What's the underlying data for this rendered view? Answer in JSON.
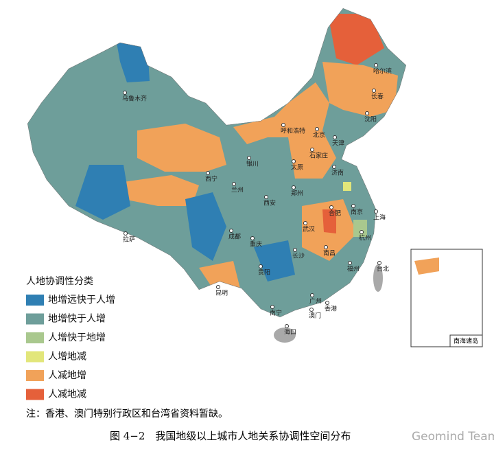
{
  "legend": {
    "title": "人地协调性分类",
    "items": [
      {
        "label": "地增远快于人增",
        "color": "#2f7fb3"
      },
      {
        "label": "地增快于人增",
        "color": "#6e9e9a"
      },
      {
        "label": "人增快于地增",
        "color": "#a9c88e"
      },
      {
        "label": "人增地减",
        "color": "#e2e67a"
      },
      {
        "label": "人减地增",
        "color": "#f1a259"
      },
      {
        "label": "人减地减",
        "color": "#e5603a"
      }
    ]
  },
  "cities": [
    "乌鲁木齐",
    "哈尔滨",
    "长春",
    "沈阳",
    "呼和浩特",
    "北京",
    "天津",
    "石家庄",
    "太原",
    "济南",
    "银川",
    "兰州",
    "西宁",
    "西安",
    "郑州",
    "合肥",
    "南京",
    "上海",
    "杭州",
    "武汉",
    "成都",
    "重庆",
    "长沙",
    "南昌",
    "福州",
    "台北",
    "贵阳",
    "昆明",
    "南宁",
    "广州",
    "香港",
    "澳门",
    "海口",
    "拉萨"
  ],
  "inset_label": "南海诸岛",
  "note": "注：香港、澳门特别行政区和台湾省资料暂缺。",
  "caption": "图 4−2　我国地级以上城市人地关系协调性空间分布",
  "watermark": "Geomind Team"
}
